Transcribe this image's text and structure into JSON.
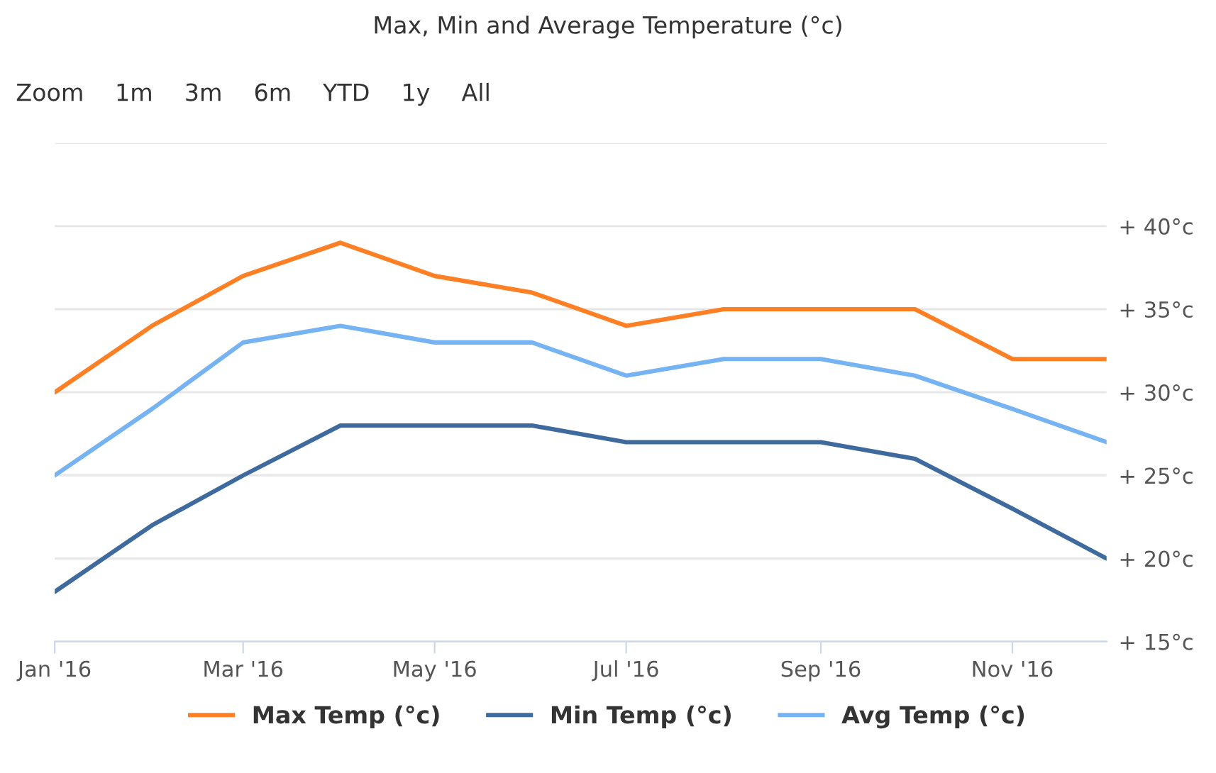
{
  "chart_data": {
    "type": "line",
    "title": "Max, Min and Average Temperature (°c)",
    "x": [
      "2016-01",
      "2016-02",
      "2016-03",
      "2016-04",
      "2016-05",
      "2016-06",
      "2016-07",
      "2016-08",
      "2016-09",
      "2016-10",
      "2016-11",
      "2016-12"
    ],
    "series": [
      {
        "name": "Max Temp (°c)",
        "color": "#ff7f24",
        "values": [
          30,
          34,
          37,
          39,
          37,
          36,
          34,
          35,
          35,
          35,
          32,
          32
        ]
      },
      {
        "name": "Min Temp (°c)",
        "color": "#3f6a9e",
        "values": [
          18,
          22,
          25,
          28,
          28,
          28,
          27,
          27,
          27,
          26,
          23,
          20
        ]
      },
      {
        "name": "Avg Temp (°c)",
        "color": "#76b3f2",
        "values": [
          25,
          29,
          33,
          34,
          33,
          33,
          31,
          32,
          32,
          31,
          29,
          27
        ]
      }
    ],
    "xlim": [
      "2016-01",
      "2016-12"
    ],
    "xticks": [
      {
        "value": "2016-01",
        "label": "Jan '16"
      },
      {
        "value": "2016-03",
        "label": "Mar '16"
      },
      {
        "value": "2016-05",
        "label": "May '16"
      },
      {
        "value": "2016-07",
        "label": "Jul '16"
      },
      {
        "value": "2016-09",
        "label": "Sep '16"
      },
      {
        "value": "2016-11",
        "label": "Nov '16"
      }
    ],
    "ylim": [
      15,
      45
    ],
    "yticks": [
      {
        "value": 15,
        "label": "+ 15°c"
      },
      {
        "value": 20,
        "label": "+ 20°c"
      },
      {
        "value": 25,
        "label": "+ 25°c"
      },
      {
        "value": 30,
        "label": "+ 30°c"
      },
      {
        "value": 35,
        "label": "+ 35°c"
      },
      {
        "value": 40,
        "label": "+ 40°c"
      },
      {
        "value": 45,
        "label": null
      }
    ],
    "grid": "y",
    "legend": "bottom",
    "marker": "none",
    "line_style": "solid",
    "annotations": [
      "Zoom",
      "1m",
      "3m",
      "6m",
      "YTD",
      "1y",
      "All"
    ]
  }
}
